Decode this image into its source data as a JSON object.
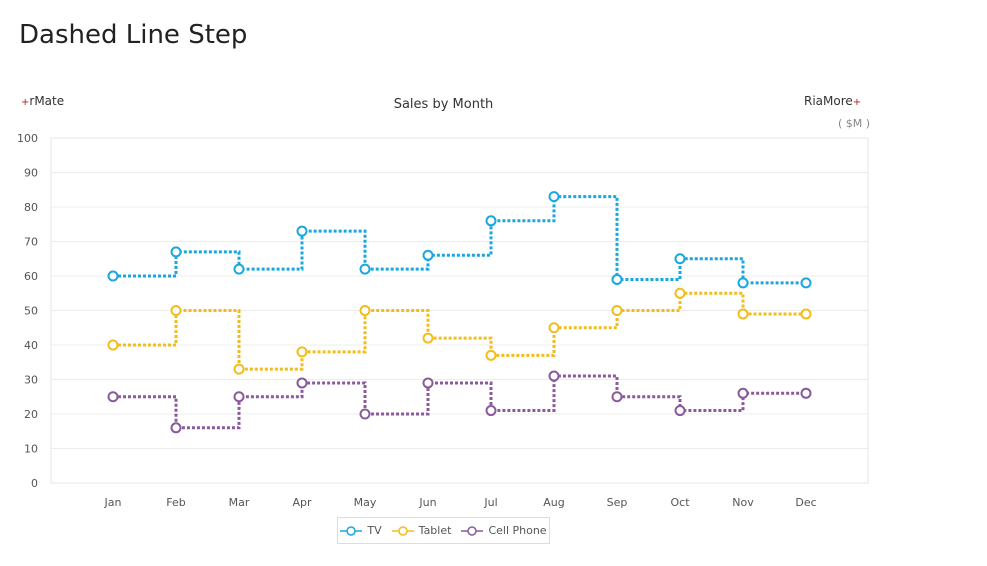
{
  "page": {
    "title": "Dashed Line Step"
  },
  "brands": {
    "left": "rMate",
    "right": "RiaMore",
    "mark": "+"
  },
  "chart_data": {
    "type": "line",
    "style": "dashed-step",
    "title": "Sales by Month",
    "unit": "( $M )",
    "categories": [
      "Jan",
      "Feb",
      "Mar",
      "Apr",
      "May",
      "Jun",
      "Jul",
      "Aug",
      "Sep",
      "Oct",
      "Nov",
      "Dec"
    ],
    "ylim": [
      0,
      100
    ],
    "yticks": [
      0,
      10,
      20,
      30,
      40,
      50,
      60,
      70,
      80,
      90,
      100
    ],
    "grid": true,
    "legend_position": "bottom",
    "series": [
      {
        "name": "TV",
        "color": "#1aa7e0",
        "values": [
          60,
          67,
          62,
          73,
          62,
          66,
          76,
          83,
          59,
          65,
          58,
          58
        ]
      },
      {
        "name": "Tablet",
        "color": "#f2bd1a",
        "values": [
          40,
          50,
          33,
          38,
          50,
          42,
          37,
          45,
          50,
          55,
          49,
          49
        ]
      },
      {
        "name": "Cell Phone",
        "color": "#8a5a9c",
        "values": [
          25,
          16,
          25,
          29,
          20,
          29,
          21,
          31,
          25,
          21,
          26,
          26
        ]
      }
    ]
  }
}
